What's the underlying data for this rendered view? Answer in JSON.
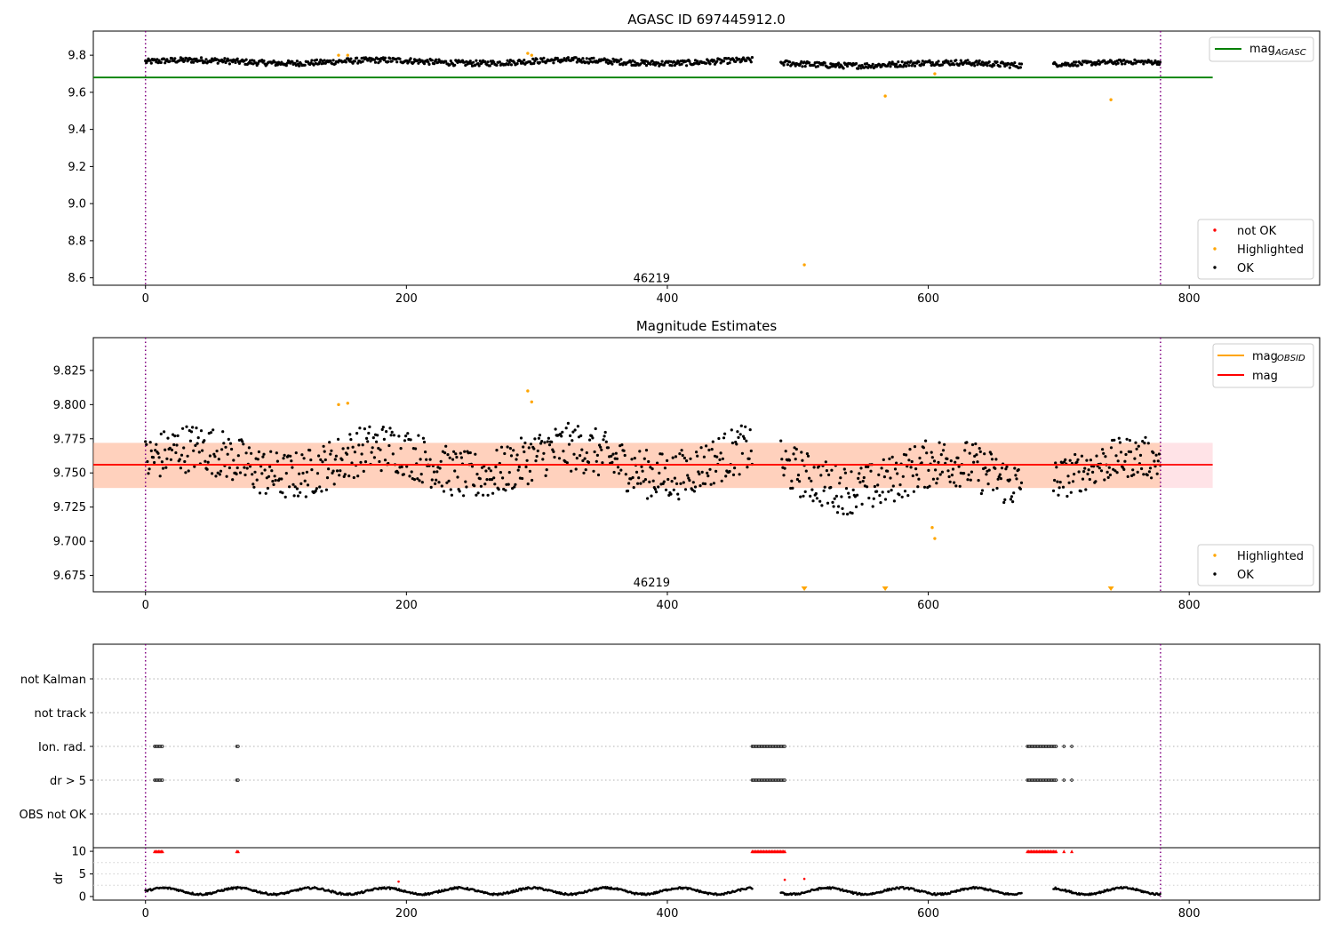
{
  "chart_data": [
    {
      "type": "scatter",
      "title": "AGASC ID 697445912.0",
      "xlim": [
        -40,
        900
      ],
      "ylim": [
        8.56,
        9.93
      ],
      "yticks": [
        8.6,
        8.8,
        9.0,
        9.2,
        9.4,
        9.6,
        9.8
      ],
      "ytick_labels": [
        "8.6",
        "8.8",
        "9.0",
        "9.2",
        "9.4",
        "9.6",
        "9.8"
      ],
      "xticks": [
        0,
        200,
        400,
        600,
        800
      ],
      "xtick_labels": [
        "0",
        "200",
        "400",
        "600",
        "800"
      ],
      "vlines": [
        0,
        778
      ],
      "annotation": {
        "text": "46219",
        "x": 388,
        "y": 8.6
      },
      "ok_series": {
        "name": "OK",
        "segments": [
          {
            "x_start": 0,
            "x_end": 465,
            "mean": 9.765,
            "amp": 0.025
          },
          {
            "x_start": 487,
            "x_end": 672,
            "mean": 9.752,
            "amp": 0.025
          },
          {
            "x_start": 696,
            "x_end": 778,
            "mean": 9.757,
            "amp": 0.02
          }
        ]
      },
      "highlighted": {
        "name": "Highlighted",
        "x": [
          148,
          155,
          293,
          296,
          505,
          567,
          605,
          740
        ],
        "y": [
          9.8,
          9.8,
          9.81,
          9.8,
          8.67,
          9.58,
          9.7,
          9.56
        ]
      },
      "mag_agasc": {
        "value": 9.68,
        "x_start": -40,
        "x_end": 818
      },
      "legend_top": [
        {
          "label": "mag",
          "sub": "AGASC",
          "color": "#008000"
        }
      ],
      "legend_bottom": [
        {
          "label": "not OK",
          "color": "#ff0000"
        },
        {
          "label": "Highlighted",
          "color": "#ffa500"
        },
        {
          "label": "OK",
          "color": "#000000"
        }
      ]
    },
    {
      "type": "scatter",
      "title": "Magnitude Estimates",
      "xlim": [
        -40,
        900
      ],
      "ylim": [
        9.663,
        9.849
      ],
      "yticks": [
        9.675,
        9.7,
        9.725,
        9.75,
        9.775,
        9.8,
        9.825
      ],
      "ytick_labels": [
        "9.675",
        "9.700",
        "9.725",
        "9.750",
        "9.775",
        "9.800",
        "9.825"
      ],
      "xticks": [
        0,
        200,
        400,
        600,
        800
      ],
      "xtick_labels": [
        "0",
        "200",
        "400",
        "600",
        "800"
      ],
      "vlines": [
        0,
        778
      ],
      "annotation": {
        "text": "46219",
        "x": 388,
        "y": 9.667
      },
      "ok_series": {
        "name": "OK",
        "segments": [
          {
            "x_start": 0,
            "x_end": 465,
            "mean": 9.758,
            "amp": 0.03
          },
          {
            "x_start": 487,
            "x_end": 672,
            "mean": 9.748,
            "amp": 0.03
          },
          {
            "x_start": 696,
            "x_end": 778,
            "mean": 9.753,
            "amp": 0.025
          }
        ]
      },
      "highlighted": {
        "name": "Highlighted",
        "x": [
          148,
          155,
          293,
          296,
          603,
          605
        ],
        "y": [
          9.8,
          9.801,
          9.81,
          9.802,
          9.71,
          9.702
        ]
      },
      "highlighted_offscale_x": [
        505,
        567,
        740
      ],
      "mag_obsid": {
        "label": "mag",
        "sub": "OBSID",
        "color": "#ffa500",
        "x_start": -40,
        "x_end": 778,
        "band": [
          9.739,
          9.772
        ]
      },
      "mag": {
        "label": "mag",
        "color": "#ff0000",
        "value": 9.756,
        "x_start": -40,
        "x_end": 818,
        "band": [
          9.739,
          9.772
        ]
      },
      "legend_top": [
        {
          "label": "mag",
          "sub": "OBSID",
          "color": "#ffa500"
        },
        {
          "label": "mag",
          "color": "#ff0000"
        }
      ],
      "legend_bottom": [
        {
          "label": "Highlighted",
          "color": "#ffa500"
        },
        {
          "label": "OK",
          "color": "#000000"
        }
      ]
    },
    {
      "type": "scatter",
      "xlim": [
        -40,
        900
      ],
      "categories": [
        "not Kalman",
        "not track",
        "Ion. rad.",
        "dr > 5",
        "OBS not OK"
      ],
      "vlines": [
        0,
        778
      ],
      "flags": {
        "Ion. rad.": [
          [
            7,
            13
          ],
          [
            70,
            71
          ],
          [
            465,
            490
          ],
          [
            676,
            698
          ],
          [
            704,
            704
          ],
          [
            710,
            710
          ]
        ],
        "dr > 5": [
          [
            7,
            13
          ],
          [
            70,
            71
          ],
          [
            465,
            490
          ],
          [
            676,
            698
          ],
          [
            704,
            704
          ],
          [
            710,
            710
          ]
        ]
      }
    },
    {
      "type": "scatter",
      "xlim": [
        -40,
        900
      ],
      "ylabel": "dr",
      "ylim": [
        -0.8,
        10.8
      ],
      "yticks": [
        0,
        5,
        10
      ],
      "ytick_labels": [
        "0",
        "5",
        "10"
      ],
      "xticks": [
        0,
        200,
        400,
        600,
        800
      ],
      "xtick_labels": [
        "0",
        "200",
        "400",
        "600",
        "800"
      ],
      "vlines": [
        0,
        778
      ],
      "dr_segments": [
        [
          0,
          465
        ],
        [
          487,
          672
        ],
        [
          696,
          778
        ]
      ],
      "clipped_red": [
        [
          7,
          13
        ],
        [
          70,
          71
        ],
        [
          465,
          490
        ],
        [
          676,
          698
        ],
        [
          704,
          704
        ],
        [
          710,
          710
        ]
      ],
      "extra_red": {
        "x": [
          194,
          490,
          505
        ],
        "y": [
          3.3,
          3.7,
          3.9
        ]
      }
    }
  ]
}
